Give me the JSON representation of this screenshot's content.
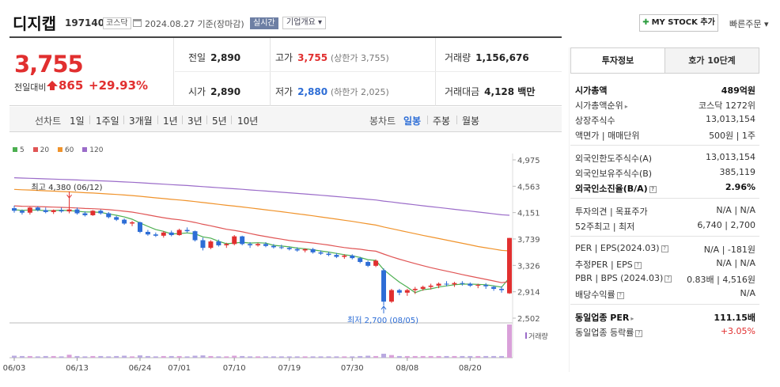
{
  "header": {
    "name": "디지캡",
    "code": "197140",
    "market_badge": "코스닥",
    "date_text": "2024.08.27 기준(장마감)",
    "realtime_label": "실시간",
    "corp_info_label": "기업개요 ▾",
    "mystock_label": "MY STOCK 추가",
    "quick_order_label": "빠른주문 ▾"
  },
  "quote": {
    "price": "3,755",
    "prev_label": "전일대비",
    "change": "865",
    "change_pct": "+29.93%",
    "prev_close_label": "전일",
    "prev_close": "2,890",
    "open_label": "시가",
    "open": "2,890",
    "high_label": "고가",
    "high": "3,755",
    "upper_limit": "(상한가 3,755)",
    "low_label": "저가",
    "low": "2,880",
    "lower_limit": "(하한가 2,025)",
    "volume_label": "거래량",
    "volume": "1,156,676",
    "amount_label": "거래대금",
    "amount": "4,128 백만"
  },
  "period_bar": {
    "line_label": "선차트",
    "line_items": [
      "1일",
      "1주일",
      "3개월",
      "1년",
      "3년",
      "5년",
      "10년"
    ],
    "candle_label": "봉차트",
    "candle_items": [
      "일봉",
      "주봉",
      "월봉"
    ],
    "active_candle": "일봉"
  },
  "chart_data": {
    "type": "candlestick",
    "legend": [
      {
        "name": "5",
        "color": "#4caf50"
      },
      {
        "name": "20",
        "color": "#e05555"
      },
      {
        "name": "60",
        "color": "#f0932b"
      },
      {
        "name": "120",
        "color": "#9b6cc9"
      }
    ],
    "y_ticks": [
      "4,975",
      "4,563",
      "4,151",
      "3,739",
      "3,326",
      "2,914",
      "2,502"
    ],
    "ylim": [
      2502,
      4975
    ],
    "x_ticks": [
      "06/03",
      "06/13",
      "06/24",
      "07/01",
      "07/10",
      "07/19",
      "07/30",
      "08/08",
      "08/20"
    ],
    "x_tick_index": [
      0,
      8,
      16,
      21,
      28,
      35,
      43,
      50,
      58
    ],
    "high_annotation": "최고 4,380 (06/12)",
    "high_annotation_index": 7,
    "high_annotation_value": 4380,
    "low_annotation": "최저 2,700 (08/05)",
    "low_annotation_index": 47,
    "low_annotation_value": 2700,
    "volume_label": "거래량",
    "candles": [
      [
        4220,
        4260,
        4150,
        4180
      ],
      [
        4180,
        4200,
        4120,
        4150
      ],
      [
        4150,
        4240,
        4120,
        4230
      ],
      [
        4230,
        4250,
        4170,
        4190
      ],
      [
        4190,
        4230,
        4140,
        4160
      ],
      [
        4160,
        4200,
        4130,
        4190
      ],
      [
        4190,
        4230,
        4150,
        4170
      ],
      [
        4170,
        4380,
        4140,
        4200
      ],
      [
        4200,
        4230,
        4120,
        4140
      ],
      [
        4140,
        4170,
        4090,
        4110
      ],
      [
        4110,
        4190,
        4100,
        4180
      ],
      [
        4180,
        4200,
        4120,
        4140
      ],
      [
        4140,
        4160,
        4060,
        4080
      ],
      [
        4080,
        4100,
        4020,
        4040
      ],
      [
        4040,
        4060,
        3960,
        3980
      ],
      [
        3980,
        4020,
        3940,
        4000
      ],
      [
        4000,
        4010,
        3830,
        3850
      ],
      [
        3850,
        3880,
        3790,
        3810
      ],
      [
        3810,
        3840,
        3770,
        3790
      ],
      [
        3790,
        3860,
        3760,
        3840
      ],
      [
        3840,
        3870,
        3780,
        3800
      ],
      [
        3800,
        3900,
        3790,
        3880
      ],
      [
        3880,
        3920,
        3840,
        3860
      ],
      [
        3860,
        3870,
        3700,
        3720
      ],
      [
        3720,
        3760,
        3560,
        3600
      ],
      [
        3600,
        3720,
        3580,
        3700
      ],
      [
        3700,
        3730,
        3620,
        3640
      ],
      [
        3640,
        3680,
        3600,
        3660
      ],
      [
        3660,
        3800,
        3640,
        3780
      ],
      [
        3780,
        3790,
        3640,
        3660
      ],
      [
        3660,
        3690,
        3600,
        3640
      ],
      [
        3640,
        3680,
        3620,
        3660
      ],
      [
        3660,
        3690,
        3610,
        3630
      ],
      [
        3630,
        3660,
        3590,
        3610
      ],
      [
        3610,
        3650,
        3580,
        3600
      ],
      [
        3600,
        3620,
        3560,
        3580
      ],
      [
        3580,
        3610,
        3540,
        3560
      ],
      [
        3560,
        3590,
        3530,
        3580
      ],
      [
        3580,
        3600,
        3510,
        3530
      ],
      [
        3530,
        3560,
        3490,
        3510
      ],
      [
        3510,
        3540,
        3470,
        3490
      ],
      [
        3490,
        3520,
        3440,
        3460
      ],
      [
        3460,
        3500,
        3430,
        3480
      ],
      [
        3480,
        3500,
        3420,
        3440
      ],
      [
        3440,
        3460,
        3360,
        3380
      ],
      [
        3380,
        3400,
        3300,
        3320
      ],
      [
        3320,
        3420,
        3300,
        3400
      ],
      [
        3250,
        3280,
        2700,
        2760
      ],
      [
        2760,
        2960,
        2740,
        2940
      ],
      [
        2940,
        2960,
        2860,
        2900
      ],
      [
        2900,
        2960,
        2850,
        2940
      ],
      [
        2940,
        2990,
        2880,
        2960
      ],
      [
        2960,
        3010,
        2930,
        2990
      ],
      [
        2990,
        3040,
        2950,
        3010
      ],
      [
        3010,
        3060,
        2970,
        3040
      ],
      [
        3040,
        3080,
        3000,
        3030
      ],
      [
        3030,
        3070,
        2990,
        3050
      ],
      [
        3050,
        3080,
        3010,
        3040
      ],
      [
        3040,
        3060,
        2990,
        3010
      ],
      [
        3010,
        3040,
        2970,
        3020
      ],
      [
        3020,
        3050,
        2960,
        3000
      ],
      [
        2990,
        3010,
        2930,
        2960
      ],
      [
        2960,
        3000,
        2900,
        2940
      ],
      [
        2890,
        3755,
        2880,
        3755
      ]
    ],
    "volume": [
      6,
      5,
      5,
      4,
      5,
      5,
      4,
      9,
      5,
      4,
      5,
      5,
      4,
      5,
      6,
      4,
      7,
      5,
      4,
      5,
      5,
      5,
      4,
      6,
      7,
      5,
      4,
      4,
      6,
      5,
      4,
      4,
      4,
      4,
      4,
      4,
      4,
      4,
      4,
      4,
      4,
      4,
      4,
      4,
      5,
      6,
      5,
      12,
      8,
      5,
      5,
      5,
      5,
      5,
      5,
      5,
      5,
      5,
      5,
      5,
      5,
      5,
      5,
      100
    ]
  },
  "info": {
    "tab1": "투자정보",
    "tab2": "호가 10단계",
    "rows1": [
      {
        "l": "시가총액",
        "r": "489억원",
        "bold": true
      },
      {
        "l": "시가총액순위",
        "r": "코스닥 1272위",
        "caret": true
      },
      {
        "l": "상장주식수",
        "r": "13,013,154"
      },
      {
        "l": "액면가 | 매매단위",
        "r": "500원 | 1주"
      }
    ],
    "rows2": [
      {
        "l": "외국인한도주식수(A)",
        "r": "13,013,154"
      },
      {
        "l": "외국인보유주식수(B)",
        "r": "385,119"
      },
      {
        "l": "외국인소진율(B/A)",
        "r": "2.96%",
        "bold": true,
        "q": true
      }
    ],
    "rows3": [
      {
        "l": "투자의견 | 목표주가",
        "r": "N/A | N/A"
      },
      {
        "l": "52주최고 | 최저",
        "r": "6,740 | 2,700"
      }
    ],
    "rows4": [
      {
        "l": "PER | EPS(2024.03)",
        "r": "N/A | -181원",
        "q": true
      },
      {
        "l": "추정PER | EPS",
        "r": "N/A | N/A",
        "q": true
      },
      {
        "l": "PBR | BPS (2024.03)",
        "r": "0.83배 | 4,516원",
        "q": true
      },
      {
        "l": "배당수익률",
        "r": "N/A",
        "q": true
      }
    ],
    "rows5": [
      {
        "l": "동일업종 PER",
        "r": "111.15배",
        "bold": true,
        "caret": true
      },
      {
        "l": "동일업종 등락률",
        "r": "+3.05%",
        "red": true,
        "q": true
      }
    ]
  }
}
